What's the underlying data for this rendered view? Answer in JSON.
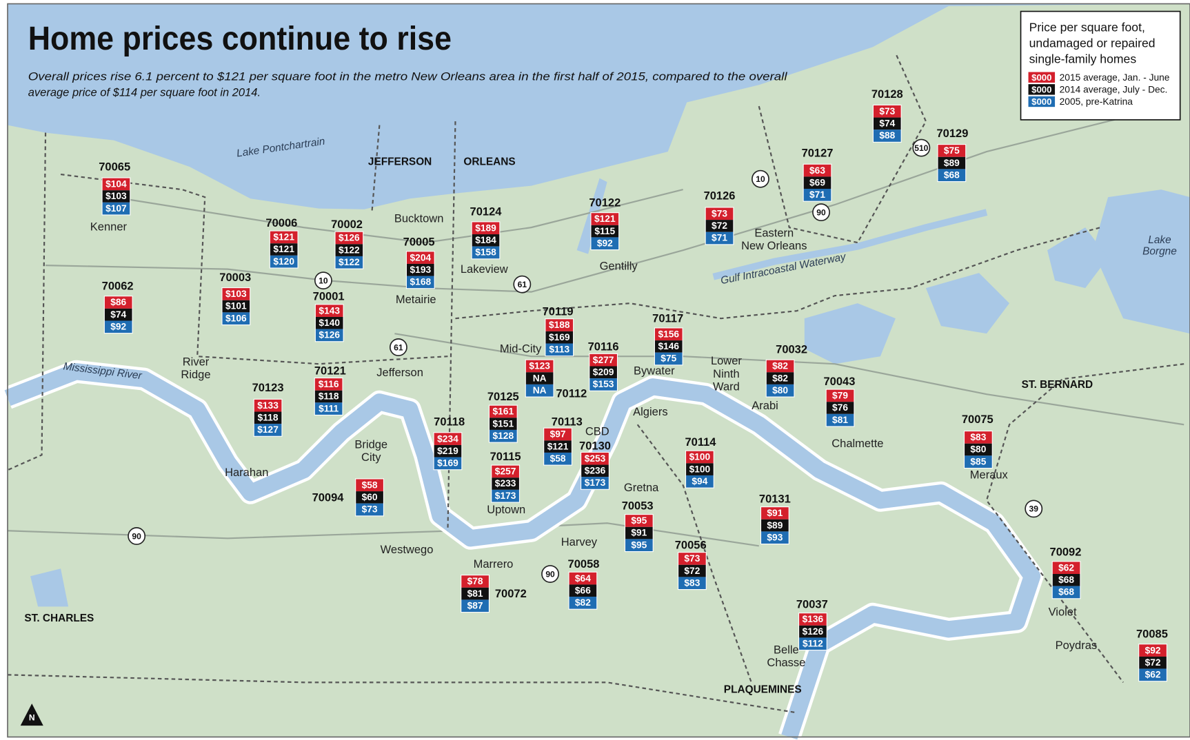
{
  "title": "Home prices continue to rise",
  "subtitle": [
    "Overall prices rise 6.1 percent to $121 per square foot in the metro New Orleans area in the first half of 2015, compared to the overall",
    "average price of $114 per square foot in 2014."
  ],
  "legend": {
    "title": [
      "Price per square foot,",
      "undamaged or repaired",
      "single-family  homes"
    ],
    "entries": [
      {
        "swatch": "$000",
        "label": "2015 average, Jan. - June"
      },
      {
        "swatch": "$000",
        "label": "2014 average, July - Dec."
      },
      {
        "swatch": "$000",
        "label": "2005, pre-Katrina"
      }
    ]
  },
  "regions": [
    "JEFFERSON",
    "ORLEANS",
    "ST. BERNARD",
    "ST. CHARLES",
    "PLAQUEMINES"
  ],
  "water_labels": [
    [
      "Lake Pontchartrain"
    ],
    [
      "Mississippi River"
    ],
    [
      "Gulf Intracoastal Waterway"
    ],
    [
      "Lake",
      "Borgne"
    ]
  ],
  "places": [
    [
      "Kenner"
    ],
    [
      "Bucktown"
    ],
    [
      "Metairie"
    ],
    [
      "Lakeview"
    ],
    [
      "Gentilly"
    ],
    [
      "Eastern",
      "New Orleans"
    ],
    [
      "Mid-City"
    ],
    [
      "Bywater"
    ],
    [
      "Lower",
      "Ninth",
      "Ward"
    ],
    [
      "Arabi"
    ],
    [
      "Chalmette"
    ],
    [
      "Algiers"
    ],
    [
      "CBD"
    ],
    [
      "Gretna"
    ],
    [
      "Jefferson"
    ],
    [
      "River",
      "Ridge"
    ],
    [
      "Bridge",
      "City"
    ],
    [
      "Harahan"
    ],
    [
      "Westwego"
    ],
    [
      "Marrero"
    ],
    [
      "Harvey"
    ],
    [
      "Uptown"
    ],
    [
      "Meraux"
    ],
    [
      "Violet"
    ],
    [
      "Poydras"
    ],
    [
      "Belle",
      "Chasse"
    ]
  ],
  "highways": [
    "10",
    "61",
    "61",
    "10",
    "510",
    "90",
    "90",
    "90",
    "39"
  ],
  "zips": [
    {
      "zip": "70065",
      "prices": [
        "$104",
        "$103",
        "$107"
      ]
    },
    {
      "zip": "70006",
      "prices": [
        "$121",
        "$121",
        "$120"
      ]
    },
    {
      "zip": "70002",
      "prices": [
        "$126",
        "$122",
        "$122"
      ]
    },
    {
      "zip": "70005",
      "prices": [
        "$204",
        "$193",
        "$168"
      ]
    },
    {
      "zip": "70124",
      "prices": [
        "$189",
        "$184",
        "$158"
      ]
    },
    {
      "zip": "70122",
      "prices": [
        "$121",
        "$115",
        "$92"
      ]
    },
    {
      "zip": "70126",
      "prices": [
        "$73",
        "$72",
        "$71"
      ]
    },
    {
      "zip": "70127",
      "prices": [
        "$63",
        "$69",
        "$71"
      ]
    },
    {
      "zip": "70128",
      "prices": [
        "$73",
        "$74",
        "$88"
      ]
    },
    {
      "zip": "70129",
      "prices": [
        "$75",
        "$89",
        "$68"
      ]
    },
    {
      "zip": "70003",
      "prices": [
        "$103",
        "$101",
        "$106"
      ]
    },
    {
      "zip": "70062",
      "prices": [
        "$86",
        "$74",
        "$92"
      ]
    },
    {
      "zip": "70001",
      "prices": [
        "$143",
        "$140",
        "$126"
      ]
    },
    {
      "zip": "70119",
      "prices": [
        "$188",
        "$169",
        "$113"
      ]
    },
    {
      "zip": "70117",
      "prices": [
        "$156",
        "$146",
        "$75"
      ]
    },
    {
      "zip": "70116",
      "prices": [
        "$277",
        "$209",
        "$153"
      ]
    },
    {
      "zip": "70112",
      "prices": [
        "$123",
        "NA",
        "NA"
      ]
    },
    {
      "zip": "70032",
      "prices": [
        "$82",
        "$82",
        "$80"
      ]
    },
    {
      "zip": "70043",
      "prices": [
        "$79",
        "$76",
        "$81"
      ]
    },
    {
      "zip": "70121",
      "prices": [
        "$116",
        "$118",
        "$111"
      ]
    },
    {
      "zip": "70123",
      "prices": [
        "$133",
        "$118",
        "$127"
      ]
    },
    {
      "zip": "70125",
      "prices": [
        "$161",
        "$151",
        "$128"
      ]
    },
    {
      "zip": "70118",
      "prices": [
        "$234",
        "$219",
        "$169"
      ]
    },
    {
      "zip": "70113",
      "prices": [
        "$97",
        "$121",
        "$58"
      ]
    },
    {
      "zip": "70130",
      "prices": [
        "$253",
        "$236",
        "$173"
      ]
    },
    {
      "zip": "70115",
      "prices": [
        "$257",
        "$233",
        "$173"
      ]
    },
    {
      "zip": "70114",
      "prices": [
        "$100",
        "$100",
        "$94"
      ]
    },
    {
      "zip": "70075",
      "prices": [
        "$83",
        "$80",
        "$85"
      ]
    },
    {
      "zip": "70094",
      "prices": [
        "$58",
        "$60",
        "$73"
      ]
    },
    {
      "zip": "70053",
      "prices": [
        "$95",
        "$91",
        "$95"
      ]
    },
    {
      "zip": "70131",
      "prices": [
        "$91",
        "$89",
        "$93"
      ]
    },
    {
      "zip": "70056",
      "prices": [
        "$73",
        "$72",
        "$83"
      ]
    },
    {
      "zip": "70058",
      "prices": [
        "$64",
        "$66",
        "$82"
      ]
    },
    {
      "zip": "70072",
      "prices": [
        "$78",
        "$81",
        "$87"
      ]
    },
    {
      "zip": "70092",
      "prices": [
        "$62",
        "$68",
        "$68"
      ]
    },
    {
      "zip": "70037",
      "prices": [
        "$136",
        "$126",
        "$112"
      ]
    },
    {
      "zip": "70085",
      "prices": [
        "$92",
        "$72",
        "$62"
      ]
    }
  ],
  "north": "N"
}
